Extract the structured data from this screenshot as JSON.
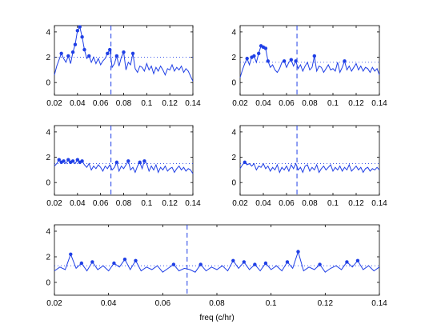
{
  "figure": {
    "background": "#ffffff",
    "series_color": "#1f3fe6",
    "xlabel": "freq (c/hr)"
  },
  "chart_data": [
    {
      "type": "line",
      "panel": "top-left",
      "xlim": [
        0.02,
        0.14
      ],
      "ylim": [
        -1,
        4.5
      ],
      "xticks": [
        "0.02",
        "0.04",
        "0.06",
        "0.08",
        "0.1",
        "0.12",
        "0.14"
      ],
      "yticks": [
        "0",
        "2",
        "4"
      ],
      "vline_x": 0.069,
      "threshold_y": 2.0,
      "x": [
        0.02,
        0.022,
        0.024,
        0.026,
        0.028,
        0.03,
        0.032,
        0.034,
        0.036,
        0.038,
        0.04,
        0.042,
        0.044,
        0.046,
        0.048,
        0.05,
        0.052,
        0.054,
        0.056,
        0.058,
        0.06,
        0.062,
        0.064,
        0.066,
        0.068,
        0.07,
        0.072,
        0.074,
        0.076,
        0.078,
        0.08,
        0.082,
        0.084,
        0.086,
        0.088,
        0.09,
        0.092,
        0.094,
        0.096,
        0.098,
        0.1,
        0.102,
        0.104,
        0.106,
        0.108,
        0.11,
        0.112,
        0.114,
        0.116,
        0.118,
        0.12,
        0.122,
        0.124,
        0.126,
        0.128,
        0.13,
        0.132,
        0.134,
        0.136,
        0.138,
        0.14
      ],
      "values": [
        0.6,
        1.3,
        1.8,
        2.3,
        1.9,
        1.6,
        2.1,
        1.5,
        2.4,
        3.0,
        4.1,
        4.4,
        3.6,
        2.6,
        1.9,
        2.1,
        1.6,
        2.0,
        1.5,
        1.9,
        1.4,
        1.7,
        1.9,
        2.3,
        2.6,
        1.2,
        1.5,
        2.1,
        1.3,
        2.0,
        2.4,
        1.0,
        1.6,
        1.4,
        2.3,
        1.1,
        0.8,
        1.3,
        1.2,
        0.9,
        1.5,
        1.0,
        1.3,
        0.7,
        1.2,
        0.9,
        1.3,
        1.0,
        0.6,
        1.1,
        1.0,
        1.4,
        0.9,
        1.2,
        1.0,
        1.3,
        0.8,
        1.1,
        0.9,
        0.5,
        0.1
      ]
    },
    {
      "type": "line",
      "panel": "top-right",
      "xlim": [
        0.02,
        0.14
      ],
      "ylim": [
        -1,
        4.5
      ],
      "xticks": [
        "0.02",
        "0.04",
        "0.06",
        "0.08",
        "0.1",
        "0.12",
        "0.14"
      ],
      "yticks": [
        "0",
        "2",
        "4"
      ],
      "vline_x": 0.069,
      "threshold_y": 1.6,
      "x": [
        0.02,
        0.022,
        0.024,
        0.026,
        0.028,
        0.03,
        0.032,
        0.034,
        0.036,
        0.038,
        0.04,
        0.042,
        0.044,
        0.046,
        0.048,
        0.05,
        0.052,
        0.054,
        0.056,
        0.058,
        0.06,
        0.062,
        0.064,
        0.066,
        0.068,
        0.07,
        0.072,
        0.074,
        0.076,
        0.078,
        0.08,
        0.082,
        0.084,
        0.086,
        0.088,
        0.09,
        0.092,
        0.094,
        0.096,
        0.098,
        0.1,
        0.102,
        0.104,
        0.106,
        0.108,
        0.11,
        0.112,
        0.114,
        0.116,
        0.118,
        0.12,
        0.122,
        0.124,
        0.126,
        0.128,
        0.13,
        0.132,
        0.134,
        0.136,
        0.138,
        0.14
      ],
      "values": [
        0.4,
        1.0,
        1.5,
        1.9,
        1.4,
        2.0,
        2.1,
        1.6,
        2.3,
        2.9,
        2.8,
        2.7,
        1.7,
        1.2,
        1.4,
        1.0,
        0.8,
        1.1,
        1.6,
        1.7,
        1.2,
        1.6,
        1.8,
        1.3,
        1.7,
        1.1,
        1.4,
        0.9,
        1.3,
        1.6,
        1.0,
        1.2,
        2.1,
        0.9,
        1.3,
        1.2,
        0.8,
        1.1,
        1.4,
        1.0,
        1.1,
        0.9,
        1.6,
        0.8,
        1.2,
        1.7,
        1.0,
        1.3,
        0.9,
        1.2,
        1.5,
        1.0,
        1.3,
        0.9,
        1.2,
        1.1,
        0.8,
        1.2,
        0.9,
        1.1,
        0.6
      ]
    },
    {
      "type": "line",
      "panel": "middle-left",
      "xlim": [
        0.02,
        0.14
      ],
      "ylim": [
        -1,
        4.5
      ],
      "xticks": [
        "0.02",
        "0.04",
        "0.06",
        "0.08",
        "0.1",
        "0.12",
        "0.14"
      ],
      "yticks": [
        "0",
        "2",
        "4"
      ],
      "vline_x": 0.069,
      "threshold_y": 1.5,
      "x": [
        0.02,
        0.022,
        0.024,
        0.026,
        0.028,
        0.03,
        0.032,
        0.034,
        0.036,
        0.038,
        0.04,
        0.042,
        0.044,
        0.046,
        0.048,
        0.05,
        0.052,
        0.054,
        0.056,
        0.058,
        0.06,
        0.062,
        0.064,
        0.066,
        0.068,
        0.07,
        0.072,
        0.074,
        0.076,
        0.078,
        0.08,
        0.082,
        0.084,
        0.086,
        0.088,
        0.09,
        0.092,
        0.094,
        0.096,
        0.098,
        0.1,
        0.102,
        0.104,
        0.106,
        0.108,
        0.11,
        0.112,
        0.114,
        0.116,
        0.118,
        0.12,
        0.122,
        0.124,
        0.126,
        0.128,
        0.13,
        0.132,
        0.134,
        0.136,
        0.138,
        0.14
      ],
      "values": [
        1.3,
        1.5,
        1.8,
        1.6,
        1.7,
        1.5,
        1.8,
        1.6,
        1.7,
        1.5,
        1.8,
        1.6,
        1.7,
        1.4,
        1.2,
        1.5,
        1.0,
        1.3,
        1.1,
        1.4,
        1.2,
        0.9,
        1.3,
        1.1,
        1.4,
        1.0,
        1.2,
        1.6,
        0.9,
        1.3,
        1.1,
        1.4,
        1.7,
        1.0,
        1.2,
        0.8,
        1.3,
        1.6,
        1.1,
        1.7,
        1.5,
        0.9,
        1.3,
        1.0,
        1.4,
        0.8,
        1.2,
        1.0,
        1.3,
        0.9,
        1.1,
        1.2,
        0.8,
        1.1,
        1.3,
        1.0,
        1.2,
        0.9,
        1.1,
        1.0,
        0.7
      ]
    },
    {
      "type": "line",
      "panel": "middle-right",
      "xlim": [
        0.02,
        0.14
      ],
      "ylim": [
        -1,
        4.5
      ],
      "xticks": [
        "0.02",
        "0.04",
        "0.06",
        "0.08",
        "0.1",
        "0.12",
        "0.14"
      ],
      "yticks": [
        "0",
        "2",
        "4"
      ],
      "vline_x": 0.069,
      "threshold_y": 1.5,
      "x": [
        0.02,
        0.022,
        0.024,
        0.026,
        0.028,
        0.03,
        0.032,
        0.034,
        0.036,
        0.038,
        0.04,
        0.042,
        0.044,
        0.046,
        0.048,
        0.05,
        0.052,
        0.054,
        0.056,
        0.058,
        0.06,
        0.062,
        0.064,
        0.066,
        0.068,
        0.07,
        0.072,
        0.074,
        0.076,
        0.078,
        0.08,
        0.082,
        0.084,
        0.086,
        0.088,
        0.09,
        0.092,
        0.094,
        0.096,
        0.098,
        0.1,
        0.102,
        0.104,
        0.106,
        0.108,
        0.11,
        0.112,
        0.114,
        0.116,
        0.118,
        0.12,
        0.122,
        0.124,
        0.126,
        0.128,
        0.13,
        0.132,
        0.134,
        0.136,
        0.138,
        0.14
      ],
      "values": [
        1.1,
        1.4,
        1.6,
        1.4,
        1.5,
        1.3,
        1.5,
        1.0,
        1.3,
        1.2,
        1.5,
        1.1,
        1.3,
        0.9,
        1.2,
        1.0,
        1.4,
        0.8,
        1.2,
        1.0,
        1.3,
        0.9,
        1.4,
        1.1,
        1.5,
        1.0,
        1.2,
        0.8,
        1.3,
        1.4,
        0.9,
        1.2,
        1.0,
        1.4,
        0.8,
        1.1,
        1.3,
        1.0,
        1.2,
        1.4,
        0.9,
        1.2,
        1.0,
        1.3,
        0.9,
        1.2,
        1.0,
        1.4,
        0.9,
        1.1,
        1.3,
        1.0,
        1.2,
        0.8,
        1.1,
        1.2,
        0.9,
        1.1,
        1.0,
        1.2,
        1.0
      ]
    },
    {
      "type": "line",
      "panel": "bottom",
      "xlim": [
        0.02,
        0.14
      ],
      "ylim": [
        -1,
        4.5
      ],
      "xticks": [
        "0.02",
        "0.04",
        "0.06",
        "0.08",
        "0.1",
        "0.12",
        "0.14"
      ],
      "yticks": [
        "0",
        "2",
        "4"
      ],
      "xlabel": "freq (c/hr)",
      "vline_x": 0.069,
      "threshold_y": 1.3,
      "x": [
        0.02,
        0.022,
        0.024,
        0.026,
        0.028,
        0.03,
        0.032,
        0.034,
        0.036,
        0.038,
        0.04,
        0.042,
        0.044,
        0.046,
        0.048,
        0.05,
        0.052,
        0.054,
        0.056,
        0.058,
        0.06,
        0.062,
        0.064,
        0.066,
        0.068,
        0.07,
        0.072,
        0.074,
        0.076,
        0.078,
        0.08,
        0.082,
        0.084,
        0.086,
        0.088,
        0.09,
        0.092,
        0.094,
        0.096,
        0.098,
        0.1,
        0.102,
        0.104,
        0.106,
        0.108,
        0.11,
        0.112,
        0.114,
        0.116,
        0.118,
        0.12,
        0.122,
        0.124,
        0.126,
        0.128,
        0.13,
        0.132,
        0.134,
        0.136,
        0.138,
        0.14
      ],
      "values": [
        0.9,
        1.2,
        1.0,
        2.2,
        1.1,
        1.5,
        0.9,
        1.6,
        1.0,
        1.3,
        0.9,
        1.5,
        1.2,
        1.8,
        1.0,
        1.7,
        0.9,
        1.2,
        1.0,
        1.3,
        0.8,
        1.1,
        1.4,
        0.9,
        1.1,
        1.0,
        0.8,
        1.4,
        0.9,
        1.2,
        1.0,
        1.3,
        0.9,
        1.7,
        1.1,
        1.6,
        1.0,
        1.4,
        0.9,
        1.5,
        1.0,
        1.3,
        0.9,
        1.6,
        1.1,
        2.4,
        0.9,
        1.2,
        1.0,
        1.4,
        0.8,
        1.1,
        1.3,
        1.0,
        1.6,
        1.2,
        1.7,
        1.0,
        1.3,
        0.9,
        1.2
      ]
    }
  ]
}
